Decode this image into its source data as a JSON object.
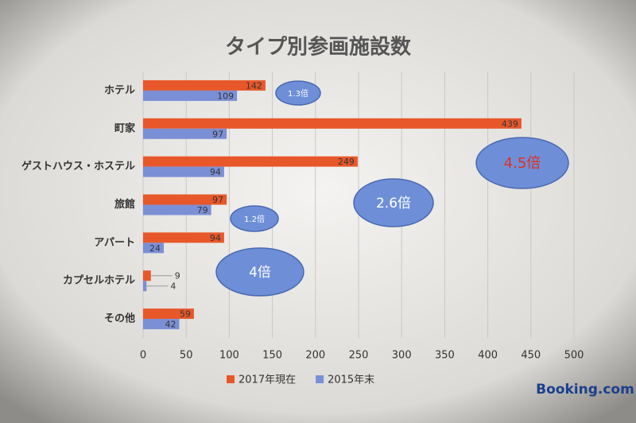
{
  "chart_data": {
    "type": "barh",
    "title": "タイプ別参画施設数",
    "categories": [
      "ホテル",
      "町家",
      "ゲストハウス・ホステル",
      "旅館",
      "アパート",
      "カプセルホテル",
      "その他"
    ],
    "series": [
      {
        "name": "2017年現在",
        "color": "#e8572a",
        "values": [
          142,
          439,
          249,
          97,
          94,
          9,
          59
        ]
      },
      {
        "name": "2015年末",
        "color": "#7b8fd6",
        "values": [
          109,
          97,
          94,
          79,
          24,
          4,
          42
        ]
      }
    ],
    "xlim": [
      0,
      500
    ],
    "xticks": [
      0,
      50,
      100,
      150,
      200,
      250,
      300,
      350,
      400,
      450,
      500
    ],
    "grid": true,
    "legend": "bottom",
    "annotations": [
      {
        "text": "1.3倍"
      },
      {
        "text": "4.5倍"
      },
      {
        "text": "2.6倍"
      },
      {
        "text": "1.2倍"
      },
      {
        "text": "4倍"
      }
    ],
    "logo": "Booking.com"
  }
}
